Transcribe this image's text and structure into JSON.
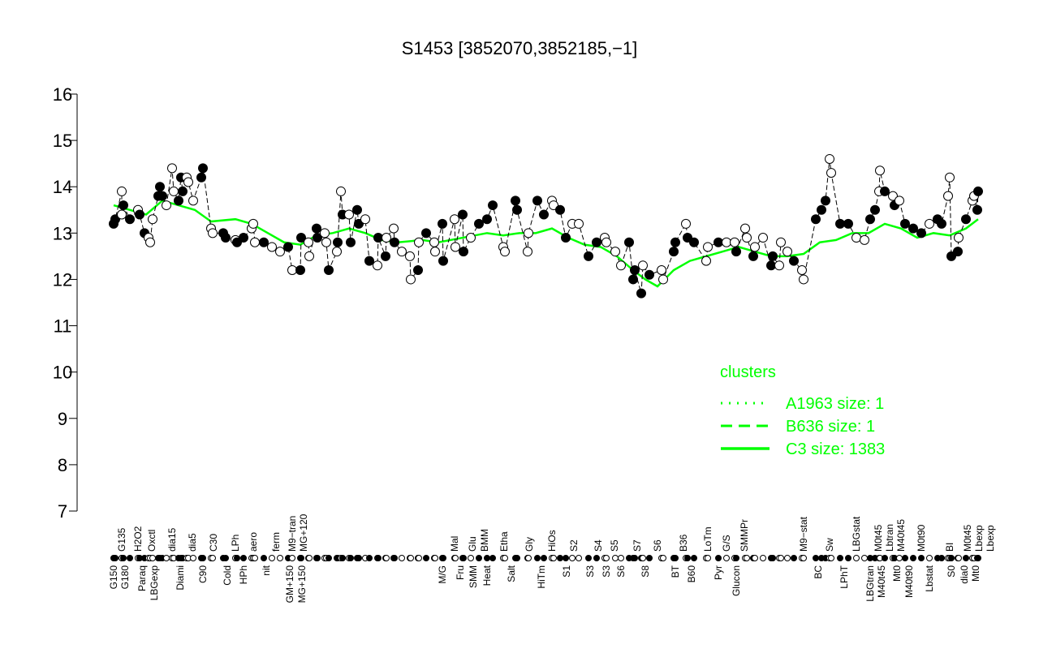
{
  "chart_data": {
    "type": "scatter",
    "title": "S1453 [3852070,3852185,−1]",
    "xlabel": "",
    "ylabel": "",
    "xlim": [
      0,
      1065
    ],
    "ylim": [
      7,
      16
    ],
    "yticks": [
      7,
      8,
      9,
      10,
      11,
      12,
      13,
      14,
      15,
      16
    ],
    "grid": false,
    "colors": {
      "line": "#00ff00",
      "point_fill": "#000000",
      "point_open": "#ffffff"
    },
    "points": [
      [
        0,
        13.2,
        1
      ],
      [
        2,
        13.3,
        1
      ],
      [
        10,
        13.9,
        0
      ],
      [
        10,
        13.4,
        0
      ],
      [
        12,
        13.6,
        1
      ],
      [
        20,
        13.3,
        1
      ],
      [
        30,
        13.5,
        0
      ],
      [
        32,
        13.4,
        1
      ],
      [
        38,
        13.0,
        1
      ],
      [
        43,
        12.9,
        0
      ],
      [
        45,
        12.8,
        0
      ],
      [
        48,
        13.3,
        0
      ],
      [
        55,
        13.8,
        1
      ],
      [
        57,
        14.0,
        1
      ],
      [
        60,
        13.8,
        1
      ],
      [
        65,
        13.6,
        0
      ],
      [
        72,
        14.4,
        0
      ],
      [
        74,
        13.9,
        0
      ],
      [
        80,
        13.7,
        1
      ],
      [
        83,
        14.2,
        1
      ],
      [
        85,
        13.9,
        1
      ],
      [
        90,
        14.2,
        0
      ],
      [
        92,
        14.1,
        0
      ],
      [
        98,
        13.7,
        0
      ],
      [
        108,
        14.2,
        1
      ],
      [
        110,
        14.4,
        1
      ],
      [
        120,
        13.1,
        0
      ],
      [
        122,
        13.0,
        0
      ],
      [
        135,
        13.0,
        1
      ],
      [
        138,
        12.9,
        1
      ],
      [
        150,
        12.85,
        0
      ],
      [
        152,
        12.8,
        1
      ],
      [
        160,
        12.9,
        1
      ],
      [
        170,
        13.1,
        0
      ],
      [
        172,
        13.2,
        0
      ],
      [
        174,
        12.8,
        0
      ],
      [
        185,
        12.8,
        1
      ],
      [
        195,
        12.7,
        0
      ],
      [
        205,
        12.6,
        0
      ],
      [
        215,
        12.7,
        1
      ],
      [
        220,
        12.2,
        0
      ],
      [
        230,
        12.2,
        1
      ],
      [
        231,
        12.9,
        1
      ],
      [
        240,
        12.8,
        0
      ],
      [
        241,
        12.5,
        0
      ],
      [
        250,
        13.1,
        1
      ],
      [
        251,
        12.9,
        1
      ],
      [
        260,
        13.0,
        0
      ],
      [
        262,
        12.8,
        0
      ],
      [
        265,
        12.2,
        1
      ],
      [
        275,
        12.6,
        0
      ],
      [
        276,
        12.8,
        1
      ],
      [
        280,
        13.9,
        0
      ],
      [
        282,
        13.4,
        1
      ],
      [
        290,
        13.4,
        0
      ],
      [
        292,
        12.8,
        1
      ],
      [
        300,
        13.5,
        1
      ],
      [
        302,
        13.2,
        1
      ],
      [
        310,
        13.3,
        0
      ],
      [
        315,
        12.4,
        1
      ],
      [
        325,
        12.3,
        0
      ],
      [
        326,
        12.9,
        1
      ],
      [
        335,
        12.5,
        1
      ],
      [
        336,
        12.9,
        0
      ],
      [
        345,
        13.1,
        0
      ],
      [
        346,
        12.8,
        1
      ],
      [
        355,
        12.6,
        0
      ],
      [
        365,
        12.5,
        0
      ],
      [
        366,
        12.0,
        0
      ],
      [
        375,
        12.2,
        1
      ],
      [
        376,
        12.8,
        0
      ],
      [
        385,
        13.0,
        1
      ],
      [
        395,
        12.8,
        0
      ],
      [
        396,
        12.6,
        0
      ],
      [
        405,
        13.2,
        1
      ],
      [
        406,
        12.4,
        1
      ],
      [
        420,
        13.3,
        0
      ],
      [
        421,
        12.7,
        0
      ],
      [
        430,
        13.4,
        1
      ],
      [
        431,
        12.6,
        1
      ],
      [
        440,
        12.9,
        0
      ],
      [
        450,
        13.2,
        1
      ],
      [
        460,
        13.3,
        1
      ],
      [
        467,
        13.6,
        1
      ],
      [
        480,
        12.7,
        0
      ],
      [
        482,
        12.6,
        0
      ],
      [
        495,
        13.7,
        1
      ],
      [
        497,
        13.5,
        1
      ],
      [
        510,
        12.6,
        0
      ],
      [
        511,
        13.0,
        0
      ],
      [
        522,
        13.7,
        1
      ],
      [
        530,
        13.4,
        1
      ],
      [
        540,
        13.7,
        0
      ],
      [
        542,
        13.6,
        0
      ],
      [
        550,
        13.5,
        1
      ],
      [
        557,
        12.9,
        1
      ],
      [
        565,
        13.2,
        0
      ],
      [
        573,
        13.2,
        0
      ],
      [
        585,
        12.5,
        1
      ],
      [
        595,
        12.8,
        1
      ],
      [
        605,
        12.9,
        0
      ],
      [
        607,
        12.8,
        0
      ],
      [
        618,
        12.6,
        0
      ],
      [
        625,
        12.3,
        0
      ],
      [
        635,
        12.8,
        1
      ],
      [
        640,
        12.0,
        1
      ],
      [
        642,
        12.2,
        1
      ],
      [
        650,
        11.7,
        1
      ],
      [
        652,
        12.3,
        0
      ],
      [
        660,
        12.1,
        1
      ],
      [
        675,
        12.2,
        0
      ],
      [
        677,
        12.0,
        0
      ],
      [
        690,
        12.6,
        1
      ],
      [
        692,
        12.8,
        1
      ],
      [
        705,
        13.2,
        0
      ],
      [
        707,
        12.9,
        1
      ],
      [
        715,
        12.8,
        1
      ],
      [
        730,
        12.4,
        0
      ],
      [
        732,
        12.7,
        0
      ],
      [
        745,
        12.8,
        1
      ],
      [
        755,
        12.8,
        0
      ],
      [
        765,
        12.8,
        0
      ],
      [
        767,
        12.6,
        1
      ],
      [
        778,
        13.1,
        0
      ],
      [
        780,
        12.9,
        0
      ],
      [
        788,
        12.5,
        1
      ],
      [
        790,
        12.7,
        0
      ],
      [
        800,
        12.9,
        0
      ],
      [
        810,
        12.3,
        1
      ],
      [
        812,
        12.5,
        1
      ],
      [
        820,
        12.3,
        0
      ],
      [
        822,
        12.8,
        0
      ],
      [
        830,
        12.6,
        0
      ],
      [
        838,
        12.4,
        1
      ],
      [
        848,
        12.2,
        0
      ],
      [
        850,
        12.0,
        0
      ],
      [
        865,
        13.3,
        1
      ],
      [
        872,
        13.5,
        1
      ],
      [
        877,
        13.7,
        1
      ],
      [
        882,
        14.6,
        0
      ],
      [
        884,
        14.3,
        0
      ],
      [
        895,
        13.2,
        1
      ],
      [
        905,
        13.2,
        1
      ],
      [
        915,
        12.9,
        0
      ],
      [
        925,
        12.85,
        0
      ],
      [
        932,
        13.3,
        1
      ],
      [
        938,
        13.5,
        1
      ],
      [
        943,
        13.9,
        0
      ],
      [
        944,
        14.35,
        0
      ],
      [
        950,
        13.9,
        1
      ],
      [
        960,
        13.8,
        0
      ],
      [
        962,
        13.6,
        1
      ],
      [
        968,
        13.7,
        0
      ],
      [
        975,
        13.2,
        1
      ],
      [
        985,
        13.1,
        1
      ],
      [
        995,
        13.0,
        1
      ],
      [
        1005,
        13.2,
        0
      ],
      [
        1015,
        13.3,
        1
      ],
      [
        1020,
        13.2,
        1
      ],
      [
        1028,
        13.8,
        0
      ],
      [
        1030,
        14.2,
        0
      ],
      [
        1032,
        12.5,
        1
      ],
      [
        1040,
        12.6,
        1
      ],
      [
        1041,
        12.9,
        0
      ],
      [
        1050,
        13.3,
        1
      ],
      [
        1058,
        13.7,
        0
      ],
      [
        1060,
        13.8,
        0
      ],
      [
        1065,
        13.9,
        1
      ],
      [
        1064,
        13.5,
        1
      ]
    ],
    "line": [
      [
        0,
        13.6
      ],
      [
        20,
        13.5
      ],
      [
        40,
        13.4
      ],
      [
        60,
        13.7
      ],
      [
        80,
        13.6
      ],
      [
        100,
        13.5
      ],
      [
        120,
        13.25
      ],
      [
        150,
        13.3
      ],
      [
        170,
        13.2
      ],
      [
        190,
        13.0
      ],
      [
        210,
        12.8
      ],
      [
        230,
        12.75
      ],
      [
        250,
        12.95
      ],
      [
        270,
        13.0
      ],
      [
        290,
        13.1
      ],
      [
        310,
        13.0
      ],
      [
        330,
        12.85
      ],
      [
        350,
        12.8
      ],
      [
        380,
        12.85
      ],
      [
        400,
        12.8
      ],
      [
        430,
        12.9
      ],
      [
        460,
        13.0
      ],
      [
        480,
        12.95
      ],
      [
        500,
        13.0
      ],
      [
        520,
        13.0
      ],
      [
        540,
        13.1
      ],
      [
        560,
        12.9
      ],
      [
        580,
        12.75
      ],
      [
        600,
        12.7
      ],
      [
        620,
        12.5
      ],
      [
        640,
        12.2
      ],
      [
        655,
        12.0
      ],
      [
        670,
        11.85
      ],
      [
        690,
        12.2
      ],
      [
        710,
        12.4
      ],
      [
        730,
        12.5
      ],
      [
        750,
        12.6
      ],
      [
        770,
        12.7
      ],
      [
        790,
        12.6
      ],
      [
        810,
        12.5
      ],
      [
        830,
        12.5
      ],
      [
        850,
        12.55
      ],
      [
        870,
        12.8
      ],
      [
        890,
        12.85
      ],
      [
        910,
        13.0
      ],
      [
        930,
        13.0
      ],
      [
        950,
        13.2
      ],
      [
        970,
        13.1
      ],
      [
        990,
        12.9
      ],
      [
        1010,
        13.0
      ],
      [
        1030,
        12.95
      ],
      [
        1050,
        13.1
      ],
      [
        1065,
        13.3
      ]
    ],
    "xtick_labels_top": [
      [
        10,
        "G135"
      ],
      [
        30,
        "H2O2"
      ],
      [
        47,
        "Oxctl"
      ],
      [
        72,
        "dia15"
      ],
      [
        97,
        "dia5"
      ],
      [
        123,
        "C30"
      ],
      [
        150,
        "LPh"
      ],
      [
        172,
        "aero"
      ],
      [
        200,
        "ferm"
      ],
      [
        220,
        "M9−tran"
      ],
      [
        232,
        "MG+120"
      ],
      [
        420,
        "Mal"
      ],
      [
        442,
        "Glu"
      ],
      [
        457,
        "BMM"
      ],
      [
        481,
        "Etha"
      ],
      [
        512,
        "Gly"
      ],
      [
        540,
        "HiOs"
      ],
      [
        567,
        "S2"
      ],
      [
        597,
        "S4"
      ],
      [
        617,
        "S5"
      ],
      [
        645,
        "S7"
      ],
      [
        670,
        "S6"
      ],
      [
        702,
        "B36"
      ],
      [
        732,
        "LoTm"
      ],
      [
        755,
        "G/S"
      ],
      [
        777,
        "SMMPr"
      ],
      [
        850,
        "M9−stat"
      ],
      [
        882,
        "Sw"
      ],
      [
        915,
        "LBGstat"
      ],
      [
        942,
        "M0t45"
      ],
      [
        955,
        "Lbtran"
      ],
      [
        965,
        "M40t45"
      ],
      [
        995,
        "M0t90"
      ],
      [
        1030,
        "BI"
      ],
      [
        1052,
        "M0t45"
      ],
      [
        1060,
        "Lbexp"
      ],
      [
        1066,
        "Lbexp"
      ]
    ],
    "xtick_labels_bottom": [
      [
        0,
        "G150"
      ],
      [
        10,
        "G180"
      ],
      [
        35,
        "Paraq"
      ],
      [
        50,
        "LBGexp"
      ],
      [
        82,
        "Diami"
      ],
      [
        110,
        "C90"
      ],
      [
        140,
        "Cold"
      ],
      [
        160,
        "HPh"
      ],
      [
        188,
        "nit"
      ],
      [
        217,
        "GM+150"
      ],
      [
        232,
        "MG+150"
      ],
      [
        405,
        "M/G"
      ],
      [
        427,
        "Fru"
      ],
      [
        443,
        "SMM"
      ],
      [
        460,
        "Heat"
      ],
      [
        490,
        "Salt"
      ],
      [
        527,
        "HiTm"
      ],
      [
        558,
        "S1"
      ],
      [
        587,
        "S3"
      ],
      [
        607,
        "S3"
      ],
      [
        625,
        "S6"
      ],
      [
        655,
        "S8"
      ],
      [
        692,
        "BT"
      ],
      [
        712,
        "B60"
      ],
      [
        745,
        "Pyr"
      ],
      [
        767,
        "Glucon"
      ],
      [
        868,
        "BC"
      ],
      [
        900,
        "LPhT"
      ],
      [
        932,
        "LBGtran"
      ],
      [
        943,
        "M40t45"
      ],
      [
        965,
        "Mt0"
      ],
      [
        980,
        "M40t90"
      ],
      [
        1005,
        "Lbstat"
      ],
      [
        1032,
        "S0"
      ],
      [
        1048,
        "dia0"
      ],
      [
        1058,
        "Mt0"
      ]
    ],
    "legend": {
      "title": "clusters",
      "placement": "bottom-right",
      "entries": [
        {
          "label": "A1963 size: 1",
          "style": "dotted"
        },
        {
          "label": "B636 size: 1",
          "style": "dashed"
        },
        {
          "label": "C3 size: 1383",
          "style": "solid"
        }
      ]
    }
  }
}
